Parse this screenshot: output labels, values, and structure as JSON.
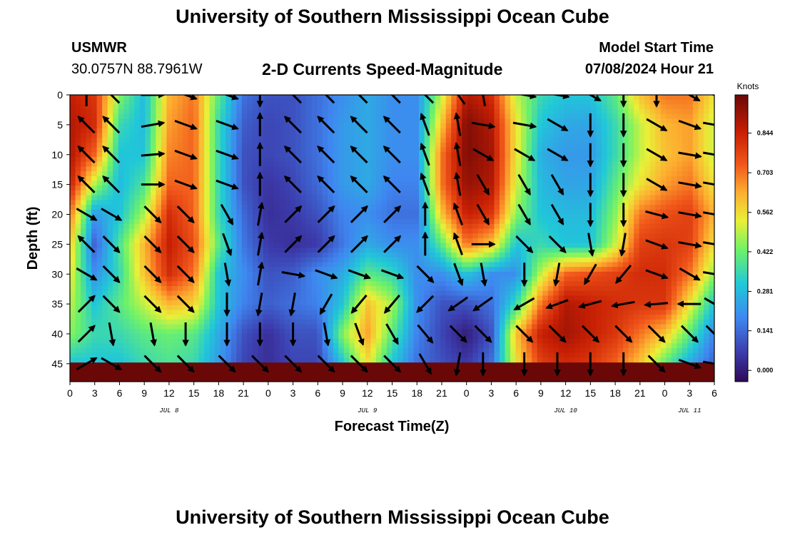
{
  "header": {
    "title": "University of Southern Mississippi Ocean Cube",
    "station": "USMWR",
    "coords": "30.0757N  88.7961W",
    "subtitle": "2-D Currents Speed-Magnitude",
    "model_start_label": "Model Start Time",
    "model_start_value": "07/08/2024 Hour 21",
    "footer_title": "University of Southern Mississippi Ocean Cube"
  },
  "chart_data": {
    "type": "heatmap",
    "xlabel": "Forecast Time(Z)",
    "ylabel": "Depth (ft)",
    "x_tick_labels": [
      "0",
      "3",
      "6",
      "9",
      "12",
      "15",
      "18",
      "21",
      "0",
      "3",
      "6",
      "9",
      "12",
      "15",
      "18",
      "21",
      "0",
      "3",
      "6",
      "9",
      "12",
      "15",
      "18",
      "21",
      "0",
      "3",
      "6"
    ],
    "x_range_hours": [
      0,
      78
    ],
    "date_labels": [
      {
        "label": "JUL 8",
        "hour": 12
      },
      {
        "label": "JUL 9",
        "hour": 36
      },
      {
        "label": "JUL 10",
        "hour": 60
      },
      {
        "label": "JUL 11",
        "hour": 75
      }
    ],
    "y_tick_labels": [
      "0",
      "5",
      "10",
      "15",
      "20",
      "25",
      "30",
      "35",
      "40",
      "45"
    ],
    "y_range_ft": [
      0,
      48
    ],
    "y_inverted": true,
    "colorbar": {
      "unit": "Knots",
      "range": [
        -0.04,
        0.98
      ],
      "tick_labels": [
        "0.844",
        "0.703",
        "0.562",
        "0.422",
        "0.281",
        "0.141",
        "0.000"
      ],
      "tick_values": [
        0.844,
        0.703,
        0.562,
        0.422,
        0.281,
        0.141,
        0.0
      ]
    },
    "speed_field": {
      "hours": [
        0,
        3,
        6,
        9,
        12,
        15,
        18,
        21,
        24,
        27,
        30,
        33,
        36,
        39,
        42,
        45,
        48,
        51,
        54,
        57,
        60,
        63,
        66,
        69,
        72,
        75,
        78
      ],
      "depths_ft": [
        0,
        5,
        10,
        15,
        20,
        25,
        30,
        35,
        40,
        45,
        48
      ],
      "values": [
        [
          0.85,
          0.88,
          0.88,
          0.85,
          0.7,
          0.6,
          0.55,
          0.5,
          0.45,
          0.3
        ],
        [
          0.8,
          0.82,
          0.72,
          0.48,
          0.22,
          0.12,
          0.2,
          0.3,
          0.35,
          0.3
        ],
        [
          0.45,
          0.35,
          0.3,
          0.28,
          0.3,
          0.38,
          0.35,
          0.4,
          0.35,
          0.3
        ],
        [
          0.28,
          0.28,
          0.3,
          0.38,
          0.48,
          0.62,
          0.6,
          0.5,
          0.4,
          0.35
        ],
        [
          0.62,
          0.65,
          0.68,
          0.72,
          0.82,
          0.85,
          0.82,
          0.62,
          0.42,
          0.38
        ],
        [
          0.7,
          0.72,
          0.72,
          0.72,
          0.72,
          0.75,
          0.7,
          0.58,
          0.4,
          0.35
        ],
        [
          0.4,
          0.35,
          0.35,
          0.35,
          0.35,
          0.4,
          0.3,
          0.3,
          0.25,
          0.22
        ],
        [
          0.15,
          0.12,
          0.1,
          0.1,
          0.14,
          0.16,
          0.2,
          0.18,
          0.1,
          0.08
        ],
        [
          0.1,
          0.08,
          0.08,
          0.05,
          0.04,
          0.06,
          0.1,
          0.12,
          0.04,
          0.04
        ],
        [
          0.1,
          0.1,
          0.1,
          0.08,
          0.06,
          0.04,
          0.12,
          0.15,
          0.1,
          0.08
        ],
        [
          0.15,
          0.15,
          0.15,
          0.14,
          0.1,
          0.06,
          0.2,
          0.18,
          0.1,
          0.08
        ],
        [
          0.2,
          0.22,
          0.22,
          0.22,
          0.18,
          0.16,
          0.25,
          0.3,
          0.45,
          0.3
        ],
        [
          0.25,
          0.25,
          0.25,
          0.25,
          0.2,
          0.25,
          0.4,
          0.6,
          0.65,
          0.55
        ],
        [
          0.2,
          0.2,
          0.2,
          0.18,
          0.15,
          0.2,
          0.35,
          0.48,
          0.4,
          0.3
        ],
        [
          0.2,
          0.2,
          0.2,
          0.18,
          0.15,
          0.2,
          0.2,
          0.2,
          0.18,
          0.15
        ],
        [
          0.5,
          0.6,
          0.7,
          0.7,
          0.6,
          0.4,
          0.2,
          0.1,
          0.08,
          0.1
        ],
        [
          0.88,
          0.95,
          0.95,
          0.92,
          0.85,
          0.7,
          0.3,
          0.1,
          0.0,
          0.06
        ],
        [
          0.82,
          0.88,
          0.9,
          0.88,
          0.8,
          0.6,
          0.2,
          0.15,
          0.1,
          0.15
        ],
        [
          0.5,
          0.55,
          0.55,
          0.52,
          0.45,
          0.3,
          0.2,
          0.35,
          0.6,
          0.55
        ],
        [
          0.35,
          0.3,
          0.26,
          0.28,
          0.3,
          0.35,
          0.5,
          0.7,
          0.85,
          0.78
        ],
        [
          0.3,
          0.25,
          0.22,
          0.24,
          0.28,
          0.3,
          0.72,
          0.88,
          0.9,
          0.82
        ],
        [
          0.3,
          0.24,
          0.22,
          0.24,
          0.28,
          0.3,
          0.75,
          0.85,
          0.85,
          0.8
        ],
        [
          0.4,
          0.35,
          0.35,
          0.4,
          0.45,
          0.5,
          0.78,
          0.82,
          0.8,
          0.72
        ],
        [
          0.6,
          0.5,
          0.5,
          0.55,
          0.7,
          0.78,
          0.82,
          0.8,
          0.7,
          0.6
        ],
        [
          0.7,
          0.62,
          0.6,
          0.65,
          0.75,
          0.8,
          0.82,
          0.8,
          0.6,
          0.4
        ],
        [
          0.7,
          0.65,
          0.65,
          0.7,
          0.78,
          0.78,
          0.7,
          0.55,
          0.4,
          0.25
        ],
        [
          0.55,
          0.5,
          0.5,
          0.55,
          0.62,
          0.55,
          0.45,
          0.3,
          0.18,
          0.12
        ]
      ]
    },
    "vectors": {
      "hours": [
        2,
        5,
        10,
        14,
        19,
        23,
        27,
        31,
        35,
        39,
        43,
        47,
        50,
        55,
        59,
        63,
        67,
        71,
        75,
        78
      ],
      "depths_ft": [
        0,
        5,
        10,
        15,
        20,
        25,
        30,
        35,
        40,
        45
      ],
      "angles_deg": [
        [
          90,
          135,
          0,
          -20,
          -20,
          -90,
          135,
          135,
          135,
          135,
          135,
          125,
          100,
          -10,
          -10,
          -30,
          -90,
          -90,
          -30,
          -20
        ],
        [
          135,
          135,
          10,
          -20,
          -20,
          90,
          135,
          135,
          135,
          135,
          110,
          100,
          -10,
          -10,
          -30,
          -90,
          -90,
          -30,
          -20,
          -10
        ],
        [
          135,
          135,
          5,
          -20,
          -20,
          90,
          135,
          135,
          135,
          135,
          110,
          100,
          -30,
          -30,
          -30,
          -90,
          -90,
          -30,
          -10,
          -10
        ],
        [
          135,
          135,
          0,
          -20,
          -20,
          90,
          135,
          135,
          135,
          135,
          110,
          100,
          -60,
          -60,
          -60,
          -90,
          -90,
          -30,
          -10,
          -10
        ],
        [
          -30,
          -30,
          -45,
          -45,
          -60,
          80,
          45,
          45,
          45,
          45,
          90,
          110,
          -60,
          -60,
          -60,
          -90,
          -90,
          -15,
          -10,
          -10
        ],
        [
          135,
          -45,
          -45,
          -45,
          -70,
          80,
          45,
          45,
          45,
          45,
          90,
          110,
          0,
          -45,
          -45,
          -80,
          -100,
          -20,
          -10,
          -10
        ],
        [
          -30,
          -45,
          -45,
          -45,
          -80,
          80,
          -10,
          -20,
          -20,
          -20,
          -45,
          -70,
          -80,
          -90,
          -100,
          -120,
          -130,
          -20,
          -30,
          -10
        ],
        [
          45,
          -45,
          -45,
          -45,
          -90,
          -100,
          -100,
          -120,
          -130,
          -130,
          -135,
          -145,
          -145,
          -150,
          -160,
          -165,
          -170,
          -175,
          -180,
          -30
        ],
        [
          45,
          -80,
          -80,
          -90,
          -90,
          -90,
          -90,
          -80,
          -70,
          -60,
          -50,
          -45,
          -45,
          -45,
          -45,
          -45,
          -45,
          -45,
          -45,
          -45
        ],
        [
          30,
          -30,
          -45,
          -45,
          -45,
          -45,
          -45,
          -45,
          -45,
          -45,
          -60,
          -100,
          -90,
          -90,
          -90,
          -90,
          -90,
          -45,
          -20,
          -10
        ]
      ]
    }
  }
}
